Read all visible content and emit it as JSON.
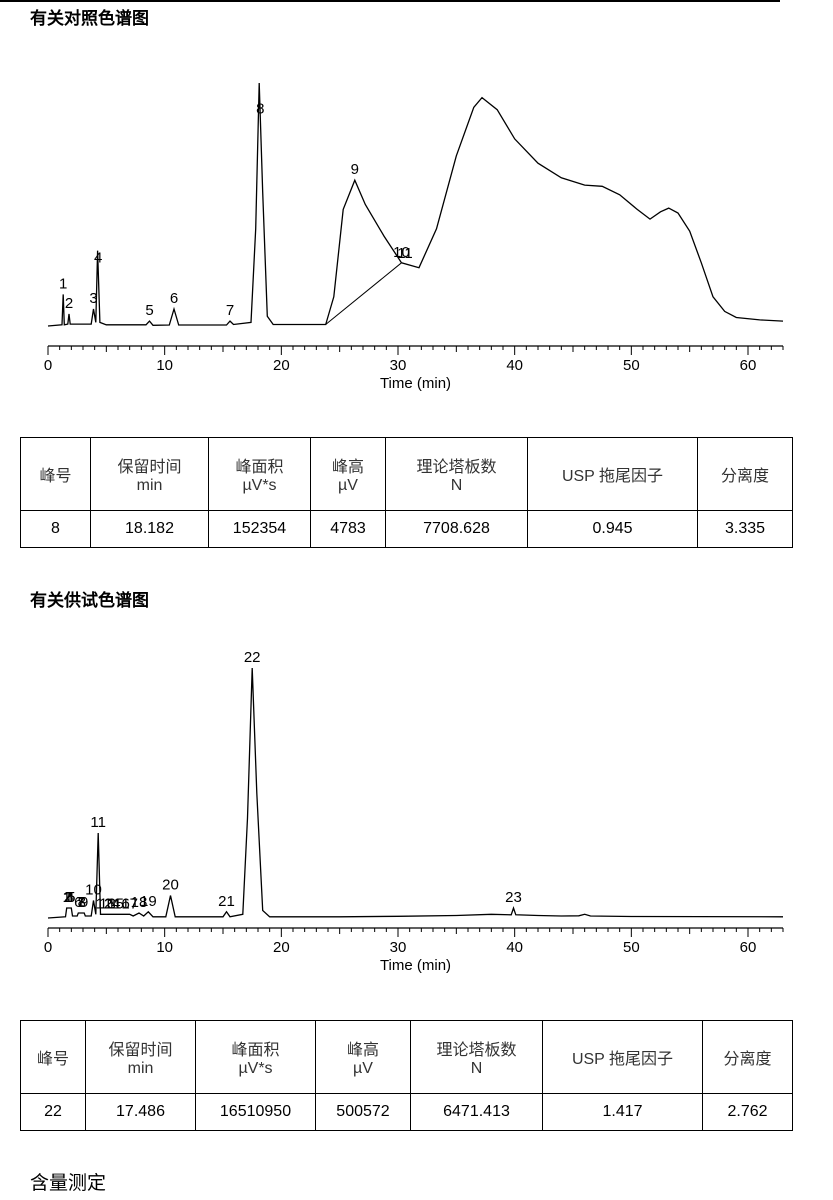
{
  "titles": {
    "reference": "有关对照色谱图",
    "test": "有关供试色谱图",
    "content": "含量测定"
  },
  "chart_data": [
    {
      "type": "line",
      "xlabel": "Time (min)",
      "xlim": [
        0,
        63
      ],
      "x_ticks": [
        0,
        10,
        20,
        30,
        40,
        50,
        60
      ],
      "grid": false,
      "peaks": [
        {
          "label": "1",
          "rt": 1.3,
          "height": 13
        },
        {
          "label": "2",
          "rt": 1.8,
          "height": 5
        },
        {
          "label": "3",
          "rt": 3.9,
          "height": 7
        },
        {
          "label": "4",
          "rt": 4.3,
          "height": 31
        },
        {
          "label": "5",
          "rt": 8.7,
          "height": 2
        },
        {
          "label": "6",
          "rt": 10.8,
          "height": 7
        },
        {
          "label": "7",
          "rt": 15.6,
          "height": 2
        },
        {
          "label": "8",
          "rt": 18.2,
          "height": 100
        },
        {
          "label": "9",
          "rt": 26.3,
          "height": 60
        },
        {
          "label": "10",
          "rt": 30.3,
          "height": 25
        },
        {
          "label": "11",
          "rt": 30.6,
          "height": 25
        }
      ],
      "trace": [
        [
          0,
          0
        ],
        [
          1.2,
          0.5
        ],
        [
          1.3,
          13
        ],
        [
          1.4,
          0.5
        ],
        [
          1.7,
          0.8
        ],
        [
          1.8,
          5
        ],
        [
          1.9,
          0.8
        ],
        [
          3.7,
          0.8
        ],
        [
          3.9,
          7
        ],
        [
          4.1,
          1.5
        ],
        [
          4.25,
          31
        ],
        [
          4.45,
          1.5
        ],
        [
          5,
          0.5
        ],
        [
          8.4,
          0.5
        ],
        [
          8.7,
          2
        ],
        [
          9,
          0.3
        ],
        [
          10.4,
          0.4
        ],
        [
          10.8,
          7
        ],
        [
          11.2,
          0.4
        ],
        [
          15.3,
          0.4
        ],
        [
          15.6,
          2
        ],
        [
          15.9,
          0.6
        ],
        [
          17.4,
          1.5
        ],
        [
          17.8,
          40
        ],
        [
          18.1,
          100
        ],
        [
          18.4,
          55
        ],
        [
          18.8,
          4
        ],
        [
          19.3,
          0.6
        ],
        [
          23.8,
          0.6
        ],
        [
          24.5,
          12
        ],
        [
          25.3,
          48
        ],
        [
          26.3,
          60
        ],
        [
          27.2,
          50
        ],
        [
          28.8,
          37
        ],
        [
          30.3,
          26
        ],
        [
          31.8,
          24
        ],
        [
          33.3,
          40
        ],
        [
          35,
          70
        ],
        [
          36.5,
          90
        ],
        [
          37.2,
          94
        ],
        [
          38.5,
          89
        ],
        [
          40,
          77
        ],
        [
          42,
          67
        ],
        [
          44,
          61
        ],
        [
          46,
          58
        ],
        [
          47.5,
          57.5
        ],
        [
          49,
          54
        ],
        [
          50.5,
          48
        ],
        [
          51.6,
          44
        ],
        [
          52.5,
          47
        ],
        [
          53.2,
          48.5
        ],
        [
          54,
          46.5
        ],
        [
          55,
          39
        ],
        [
          56,
          26
        ],
        [
          57,
          12
        ],
        [
          58,
          6
        ],
        [
          59,
          3.5
        ],
        [
          61,
          2.5
        ],
        [
          63,
          2
        ]
      ],
      "baseline_segments": [
        [
          [
            23.8,
            0.6
          ],
          [
            30.3,
            26
          ]
        ]
      ]
    },
    {
      "type": "line",
      "xlabel": "Time (min)",
      "xlim": [
        0,
        63
      ],
      "x_ticks": [
        0,
        10,
        20,
        30,
        40,
        50,
        60
      ],
      "grid": false,
      "peaks": [
        {
          "label": "1",
          "rt": 1.6,
          "height": 4
        },
        {
          "label": "2",
          "rt": 1.7,
          "height": 4
        },
        {
          "label": "3",
          "rt": 1.8,
          "height": 4
        },
        {
          "label": "4",
          "rt": 1.9,
          "height": 4
        },
        {
          "label": "5",
          "rt": 2.0,
          "height": 4
        },
        {
          "label": "6",
          "rt": 2.6,
          "height": 2
        },
        {
          "label": "7",
          "rt": 2.8,
          "height": 2
        },
        {
          "label": "8",
          "rt": 2.9,
          "height": 2
        },
        {
          "label": "9",
          "rt": 3.1,
          "height": 2
        },
        {
          "label": "10",
          "rt": 3.9,
          "height": 7
        },
        {
          "label": "11",
          "rt": 4.3,
          "height": 34
        },
        {
          "label": "12",
          "rt": 4.8,
          "height": 1.5
        },
        {
          "label": "13",
          "rt": 5.1,
          "height": 1.5
        },
        {
          "label": "14",
          "rt": 5.5,
          "height": 1.5
        },
        {
          "label": "15",
          "rt": 5.8,
          "height": 1.5
        },
        {
          "label": "16",
          "rt": 6.3,
          "height": 1.5
        },
        {
          "label": "17",
          "rt": 7.0,
          "height": 1.5
        },
        {
          "label": "18",
          "rt": 7.8,
          "height": 2
        },
        {
          "label": "19",
          "rt": 8.6,
          "height": 2.5
        },
        {
          "label": "20",
          "rt": 10.5,
          "height": 9
        },
        {
          "label": "21",
          "rt": 15.3,
          "height": 2.5
        },
        {
          "label": "22",
          "rt": 17.5,
          "height": 100
        },
        {
          "label": "23",
          "rt": 39.9,
          "height": 4
        }
      ],
      "trace": [
        [
          0,
          0
        ],
        [
          1.5,
          0.5
        ],
        [
          1.6,
          4
        ],
        [
          2.0,
          4
        ],
        [
          2.1,
          0.8
        ],
        [
          2.5,
          0.8
        ],
        [
          2.6,
          2
        ],
        [
          3.1,
          2
        ],
        [
          3.2,
          0.8
        ],
        [
          3.7,
          0.8
        ],
        [
          3.9,
          7
        ],
        [
          4.1,
          1.5
        ],
        [
          4.3,
          34
        ],
        [
          4.5,
          1.5
        ],
        [
          4.8,
          1.5
        ],
        [
          5.5,
          1.5
        ],
        [
          6.3,
          1.5
        ],
        [
          7.0,
          1.5
        ],
        [
          7.3,
          0.8
        ],
        [
          7.8,
          2
        ],
        [
          8.2,
          0.8
        ],
        [
          8.6,
          2.5
        ],
        [
          9,
          0.5
        ],
        [
          10.1,
          0.5
        ],
        [
          10.5,
          9
        ],
        [
          10.9,
          0.5
        ],
        [
          15,
          0.5
        ],
        [
          15.3,
          2.5
        ],
        [
          15.6,
          0.5
        ],
        [
          16.7,
          1.5
        ],
        [
          17.1,
          40
        ],
        [
          17.5,
          100
        ],
        [
          17.9,
          50
        ],
        [
          18.4,
          3
        ],
        [
          19,
          0.5
        ],
        [
          25,
          0.5
        ],
        [
          30,
          0.7
        ],
        [
          35,
          1
        ],
        [
          38,
          1.5
        ],
        [
          39.7,
          1.3
        ],
        [
          39.9,
          4
        ],
        [
          40.1,
          1.3
        ],
        [
          42,
          1
        ],
        [
          44,
          0.8
        ],
        [
          45.5,
          0.9
        ],
        [
          46,
          1.5
        ],
        [
          46.5,
          0.8
        ],
        [
          50,
          0.6
        ],
        [
          63,
          0.5
        ]
      ]
    }
  ],
  "table1": {
    "headers": [
      {
        "cn": "峰号",
        "sub": ""
      },
      {
        "cn": "保留时间",
        "sub": "min"
      },
      {
        "cn": "峰面积",
        "sub": "µV*s"
      },
      {
        "cn": "峰高",
        "sub": "µV"
      },
      {
        "cn": "理论塔板数",
        "sub": "N"
      },
      {
        "en": "USP",
        "cn": "拖尾因子"
      },
      {
        "cn": "分离度",
        "sub": ""
      }
    ],
    "row": [
      "8",
      "18.182",
      "152354",
      "4783",
      "7708.628",
      "0.945",
      "3.335"
    ]
  },
  "table2": {
    "headers": [
      {
        "cn": "峰号",
        "sub": ""
      },
      {
        "cn": "保留时间",
        "sub": "min"
      },
      {
        "cn": "峰面积",
        "sub": "µV*s"
      },
      {
        "cn": "峰高",
        "sub": "µV"
      },
      {
        "cn": "理论塔板数",
        "sub": "N"
      },
      {
        "en": "USP",
        "cn": "拖尾因子"
      },
      {
        "cn": "分离度",
        "sub": ""
      }
    ],
    "row": [
      "22",
      "17.486",
      "16510950",
      "500572",
      "6471.413",
      "1.417",
      "2.762"
    ]
  }
}
